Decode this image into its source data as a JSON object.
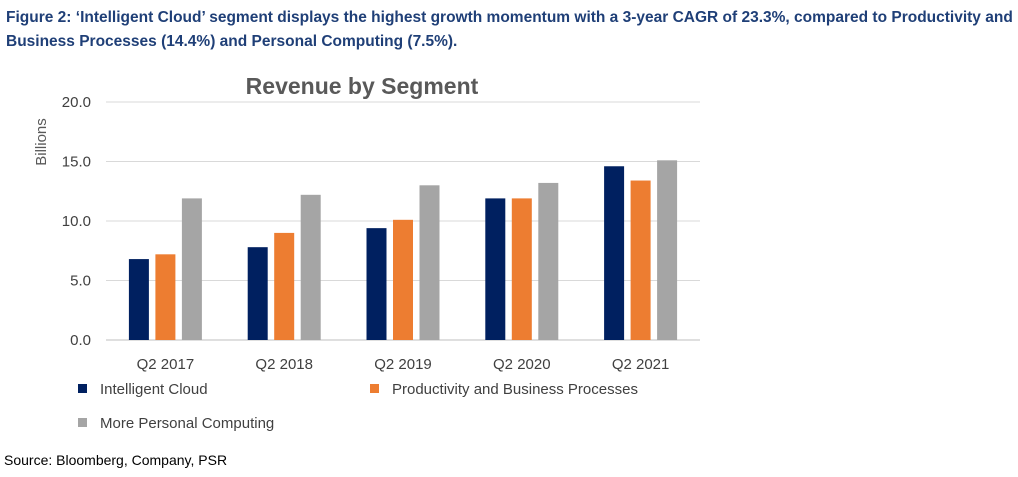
{
  "caption": "Figure 2: ‘Intelligent Cloud’ segment displays the highest growth momentum with a 3-year CAGR of 23.3%, compared to Productivity and Business Processes (14.4%) and Personal Computing (7.5%).",
  "source": "Source: Bloomberg, Company, PSR",
  "chart_data": {
    "type": "bar",
    "title": "Revenue by Segment",
    "xlabel": "",
    "ylabel": "Billions",
    "ylim": [
      0,
      20
    ],
    "yticks": [
      "0.0",
      "5.0",
      "10.0",
      "15.0",
      "20.0"
    ],
    "grid": true,
    "legend_position": "bottom",
    "categories": [
      "Q2 2017",
      "Q2 2018",
      "Q2 2019",
      "Q2 2020",
      "Q2 2021"
    ],
    "series": [
      {
        "name": "Intelligent Cloud",
        "color": "#002060",
        "values": [
          6.8,
          7.8,
          9.4,
          11.9,
          14.6
        ]
      },
      {
        "name": "Productivity and Business Processes",
        "color": "#ed7d31",
        "values": [
          7.2,
          9.0,
          10.1,
          11.9,
          13.4
        ]
      },
      {
        "name": "More Personal Computing",
        "color": "#a5a5a5",
        "values": [
          11.9,
          12.2,
          13.0,
          13.2,
          15.1
        ]
      }
    ]
  }
}
